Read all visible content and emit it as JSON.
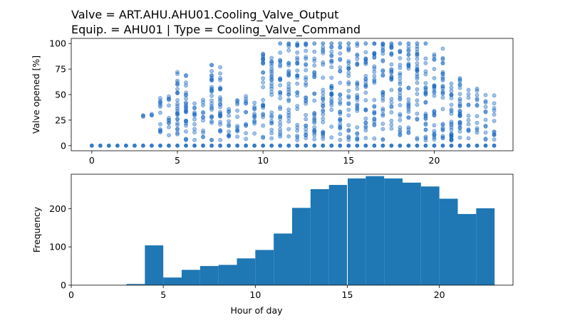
{
  "title_lines": [
    "Valve = ART.AHU.AHU01.Cooling_Valve_Output",
    "Equip. = AHU01 | Type = Cooling_Valve_Command"
  ],
  "colors": {
    "scatter": "#1565c0",
    "bar": "#1f77b4",
    "axis": "#000000"
  },
  "chart_data": [
    {
      "type": "scatter",
      "ylabel": "Valve opened [%]",
      "xlim": [
        -1.2,
        24.6
      ],
      "ylim": [
        -5,
        105
      ],
      "xticks": [
        0,
        5,
        10,
        15,
        20
      ],
      "yticks": [
        0,
        25,
        50,
        75,
        100
      ],
      "grid": false,
      "x_step_hours": 0.5,
      "zero_row_from_hour": 0,
      "positive_points_from_hour": 3,
      "positive_range_by_hour": [
        {
          "hour": 3,
          "min": 27,
          "max": 31
        },
        {
          "hour": 4,
          "min": 5,
          "max": 52
        },
        {
          "hour": 5,
          "min": 5,
          "max": 72
        },
        {
          "hour": 6,
          "min": 5,
          "max": 45
        },
        {
          "hour": 7,
          "min": 5,
          "max": 79
        },
        {
          "hour": 8,
          "min": 5,
          "max": 45
        },
        {
          "hour": 9,
          "min": 5,
          "max": 58
        },
        {
          "hour": 10,
          "min": 5,
          "max": 90
        },
        {
          "hour": 11,
          "min": 5,
          "max": 100
        },
        {
          "hour": 12,
          "min": 5,
          "max": 100
        },
        {
          "hour": 13,
          "min": 5,
          "max": 100
        },
        {
          "hour": 14,
          "min": 5,
          "max": 100
        },
        {
          "hour": 15,
          "min": 5,
          "max": 100
        },
        {
          "hour": 16,
          "min": 5,
          "max": 100
        },
        {
          "hour": 17,
          "min": 5,
          "max": 100
        },
        {
          "hour": 18,
          "min": 5,
          "max": 100
        },
        {
          "hour": 19,
          "min": 5,
          "max": 100
        },
        {
          "hour": 20,
          "min": 5,
          "max": 95
        },
        {
          "hour": 21,
          "min": 5,
          "max": 66
        },
        {
          "hour": 22,
          "min": 5,
          "max": 58
        },
        {
          "hour": 23,
          "min": 5,
          "max": 53
        }
      ],
      "outliers": [
        {
          "x": 5,
          "y": 72
        },
        {
          "x": 7,
          "y": 79
        },
        {
          "x": 10,
          "y": 90
        },
        {
          "x": 20.5,
          "y": 95
        },
        {
          "x": 21.5,
          "y": 66
        }
      ]
    },
    {
      "type": "bar",
      "xlabel": "Hour of day",
      "ylabel": "Frequency",
      "xlim": [
        0,
        24
      ],
      "ylim": [
        0,
        290
      ],
      "xticks": [
        0,
        5,
        10,
        15,
        20
      ],
      "yticks": [
        0,
        100,
        200
      ],
      "bin_edges": [
        3,
        4,
        5,
        6,
        7,
        8,
        9,
        10,
        11,
        12,
        13,
        14,
        15,
        16,
        17,
        18,
        19,
        20,
        21,
        22,
        23
      ],
      "values": [
        3,
        104,
        20,
        40,
        50,
        53,
        70,
        92,
        135,
        202,
        251,
        262,
        279,
        285,
        279,
        268,
        258,
        226,
        186,
        201
      ]
    }
  ]
}
